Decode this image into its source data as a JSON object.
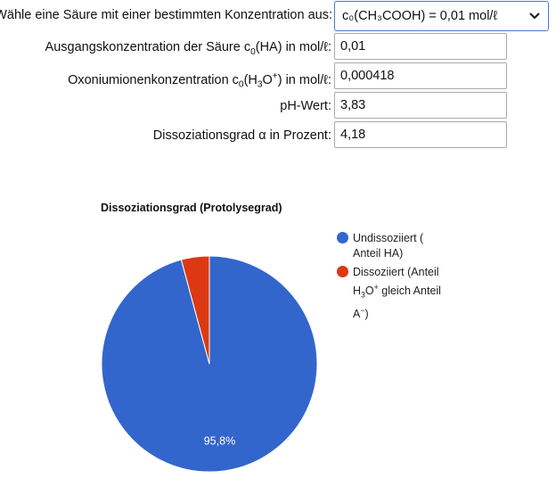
{
  "form": {
    "select_label": "Wähle eine Säure mit einer bestimmten Konzentration aus:",
    "select_value": "c₀(CH₃COOH) = 0,01 mol/ℓ",
    "fields": [
      {
        "label_pre": "Ausgangskonzentration der Säure c",
        "label_sub": "0",
        "label_post": "(HA) in mol/ℓ:",
        "value": "0,01"
      },
      {
        "label_pre": "Oxoniumionenkonzentration c",
        "label_sub": "0",
        "label_mid": "(H",
        "label_sub2": "3",
        "label_o": "O",
        "label_sup": "+",
        "label_post": ") in mol/ℓ:",
        "value": "0,000418"
      },
      {
        "label": "pH-Wert:",
        "value": "3,83"
      },
      {
        "label": "Dissoziationsgrad α in Prozent:",
        "value": "4,18"
      }
    ]
  },
  "chart_data": {
    "type": "pie",
    "title": "Dissoziationsgrad (Protolysegrad)",
    "slices": [
      {
        "name": "Undissoziiert ( Anteil HA)",
        "value": 95.8,
        "color": "#3366cc",
        "label": "95,8%"
      },
      {
        "name": "Dissoziiert (Anteil H₃O⁺ gleich Anteil A⁻)",
        "value": 4.2,
        "color": "#dc3912",
        "label": ""
      }
    ],
    "legend_position": "right"
  },
  "legend": {
    "item1_line1": "Undissoziiert (",
    "item1_line2": "Anteil HA)",
    "item2_line1": "Dissoziiert (Anteil",
    "item2_line2_pre": "H",
    "item2_line2_sub": "3",
    "item2_line2_o": "O",
    "item2_line2_sup": "+",
    "item2_line2_post": " gleich Anteil",
    "item2_line3_pre": "A",
    "item2_line3_sup": "−",
    "item2_line3_post": ")"
  }
}
